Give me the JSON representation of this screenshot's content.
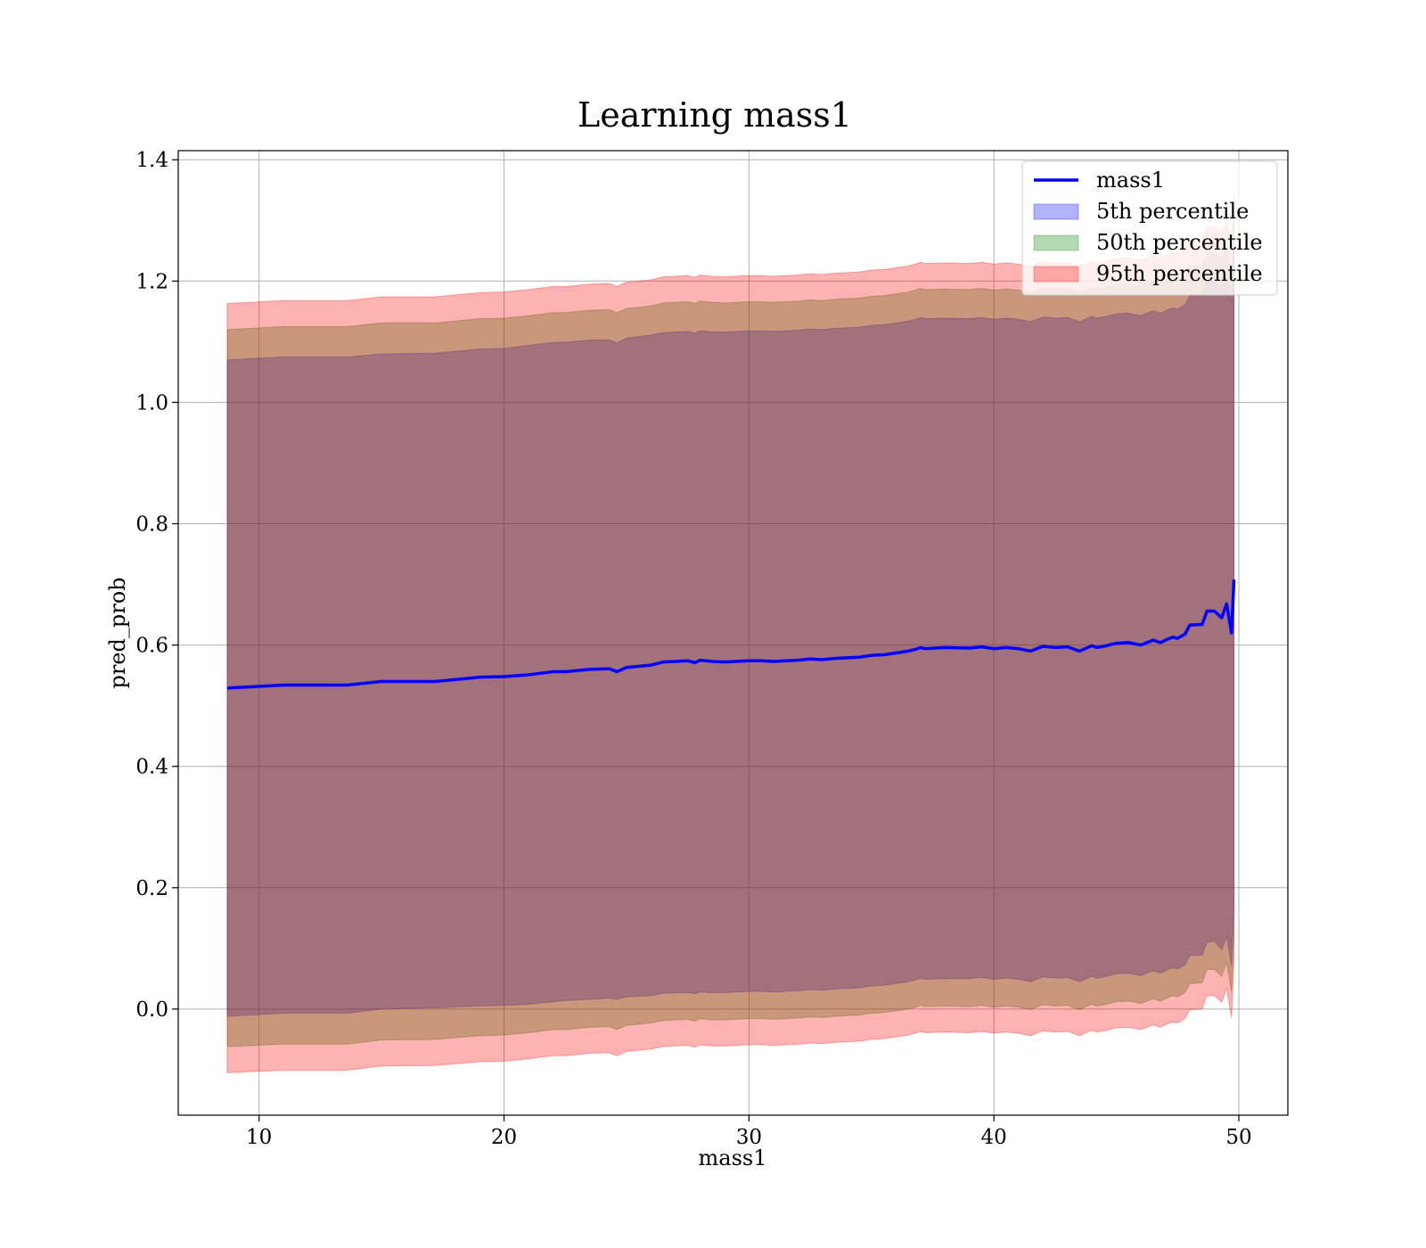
{
  "chart_data": {
    "type": "area",
    "title": "Learning mass1",
    "xlabel": "mass1",
    "ylabel": "pred_prob",
    "xlim": [
      6.7,
      52
    ],
    "ylim": [
      -0.175,
      1.415
    ],
    "xticks": [
      10,
      20,
      30,
      40,
      50
    ],
    "yticks": [
      0.0,
      0.2,
      0.4,
      0.6,
      0.8,
      1.0,
      1.2,
      1.4
    ],
    "xtick_labels": [
      "10",
      "20",
      "30",
      "40",
      "50"
    ],
    "ytick_labels": [
      "0.0",
      "0.2",
      "0.4",
      "0.6",
      "0.8",
      "1.0",
      "1.2",
      "1.4"
    ],
    "grid": true,
    "legend_position": "top-right",
    "x": [
      8.7,
      11,
      13.6,
      15,
      17.2,
      19,
      20,
      21,
      22,
      22.5,
      23.5,
      24.3,
      24.6,
      25,
      26,
      26.5,
      27.5,
      27.8,
      28,
      28.5,
      29,
      30,
      30.5,
      31,
      32,
      32.5,
      33,
      33.5,
      34,
      34.5,
      35,
      35.5,
      36,
      36.5,
      36.8,
      37,
      37.2,
      38,
      39,
      39.5,
      40,
      40.5,
      41,
      41.5,
      42,
      42.5,
      43,
      43.5,
      44,
      44.2,
      44.5,
      45,
      45.5,
      46,
      46.5,
      46.8,
      47,
      47.3,
      47.5,
      47.8,
      48,
      48.5,
      48.7,
      49,
      49.3,
      49.5,
      49.7,
      49.8
    ],
    "series": [
      {
        "name": "mass1",
        "color": "#0000ff",
        "values": [
          0.529,
          0.534,
          0.534,
          0.54,
          0.54,
          0.547,
          0.548,
          0.551,
          0.556,
          0.556,
          0.56,
          0.561,
          0.556,
          0.563,
          0.567,
          0.572,
          0.574,
          0.571,
          0.575,
          0.573,
          0.572,
          0.574,
          0.574,
          0.573,
          0.575,
          0.577,
          0.576,
          0.578,
          0.579,
          0.58,
          0.583,
          0.584,
          0.587,
          0.59,
          0.593,
          0.596,
          0.594,
          0.596,
          0.595,
          0.597,
          0.594,
          0.596,
          0.594,
          0.59,
          0.598,
          0.596,
          0.597,
          0.59,
          0.599,
          0.596,
          0.598,
          0.603,
          0.604,
          0.6,
          0.608,
          0.604,
          0.608,
          0.613,
          0.611,
          0.618,
          0.633,
          0.634,
          0.656,
          0.656,
          0.645,
          0.668,
          0.62,
          0.708
        ]
      },
      {
        "name": "5th percentile",
        "color": "#0000ff",
        "lower": [
          -0.012,
          -0.007,
          -0.007,
          0.0,
          0.002,
          0.005,
          0.006,
          0.008,
          0.012,
          0.014,
          0.016,
          0.018,
          0.016,
          0.02,
          0.022,
          0.026,
          0.027,
          0.025,
          0.028,
          0.027,
          0.027,
          0.029,
          0.029,
          0.028,
          0.03,
          0.032,
          0.031,
          0.033,
          0.034,
          0.035,
          0.038,
          0.039,
          0.042,
          0.045,
          0.048,
          0.051,
          0.049,
          0.05,
          0.05,
          0.052,
          0.049,
          0.051,
          0.049,
          0.045,
          0.053,
          0.051,
          0.052,
          0.045,
          0.054,
          0.051,
          0.053,
          0.058,
          0.059,
          0.055,
          0.063,
          0.059,
          0.063,
          0.068,
          0.066,
          0.073,
          0.088,
          0.089,
          0.11,
          0.112,
          0.098,
          0.12,
          0.072,
          0.165
        ],
        "upper": [
          1.07,
          1.075,
          1.075,
          1.08,
          1.081,
          1.088,
          1.089,
          1.094,
          1.099,
          1.099,
          1.103,
          1.103,
          1.098,
          1.106,
          1.111,
          1.115,
          1.117,
          1.114,
          1.118,
          1.116,
          1.116,
          1.118,
          1.118,
          1.117,
          1.119,
          1.121,
          1.12,
          1.122,
          1.123,
          1.124,
          1.127,
          1.128,
          1.131,
          1.134,
          1.137,
          1.14,
          1.138,
          1.139,
          1.138,
          1.14,
          1.137,
          1.139,
          1.137,
          1.133,
          1.141,
          1.139,
          1.14,
          1.133,
          1.142,
          1.139,
          1.141,
          1.146,
          1.147,
          1.143,
          1.151,
          1.147,
          1.151,
          1.156,
          1.154,
          1.161,
          1.176,
          1.177,
          1.199,
          1.199,
          1.188,
          1.211,
          1.163,
          1.251
        ]
      },
      {
        "name": "50th percentile",
        "color": "#008000",
        "lower": [
          -0.062,
          -0.058,
          -0.058,
          -0.051,
          -0.05,
          -0.044,
          -0.043,
          -0.039,
          -0.034,
          -0.034,
          -0.03,
          -0.029,
          -0.034,
          -0.027,
          -0.023,
          -0.019,
          -0.017,
          -0.02,
          -0.016,
          -0.018,
          -0.018,
          -0.016,
          -0.016,
          -0.017,
          -0.015,
          -0.013,
          -0.014,
          -0.012,
          -0.011,
          -0.01,
          -0.007,
          -0.006,
          -0.003,
          0.0,
          0.003,
          0.006,
          0.004,
          0.005,
          0.004,
          0.006,
          0.003,
          0.005,
          0.003,
          -0.001,
          0.007,
          0.005,
          0.006,
          -0.001,
          0.008,
          0.005,
          0.007,
          0.012,
          0.013,
          0.009,
          0.017,
          0.013,
          0.017,
          0.022,
          0.02,
          0.027,
          0.042,
          0.043,
          0.065,
          0.065,
          0.054,
          0.077,
          0.029,
          0.117
        ],
        "upper": [
          1.12,
          1.125,
          1.125,
          1.131,
          1.131,
          1.138,
          1.139,
          1.143,
          1.148,
          1.148,
          1.152,
          1.153,
          1.148,
          1.155,
          1.159,
          1.164,
          1.166,
          1.163,
          1.167,
          1.165,
          1.164,
          1.166,
          1.166,
          1.165,
          1.167,
          1.169,
          1.168,
          1.17,
          1.171,
          1.172,
          1.175,
          1.176,
          1.179,
          1.182,
          1.185,
          1.188,
          1.186,
          1.187,
          1.186,
          1.188,
          1.185,
          1.187,
          1.185,
          1.181,
          1.189,
          1.187,
          1.188,
          1.181,
          1.19,
          1.187,
          1.189,
          1.194,
          1.195,
          1.191,
          1.199,
          1.195,
          1.199,
          1.204,
          1.202,
          1.209,
          1.224,
          1.225,
          1.247,
          1.247,
          1.236,
          1.259,
          1.211,
          1.299
        ]
      },
      {
        "name": "95th percentile",
        "color": "#ff0000",
        "lower": [
          -0.105,
          -0.101,
          -0.101,
          -0.094,
          -0.093,
          -0.087,
          -0.086,
          -0.082,
          -0.077,
          -0.077,
          -0.073,
          -0.072,
          -0.077,
          -0.07,
          -0.066,
          -0.062,
          -0.06,
          -0.063,
          -0.059,
          -0.061,
          -0.061,
          -0.059,
          -0.059,
          -0.06,
          -0.058,
          -0.056,
          -0.057,
          -0.055,
          -0.054,
          -0.053,
          -0.05,
          -0.049,
          -0.046,
          -0.043,
          -0.04,
          -0.037,
          -0.039,
          -0.038,
          -0.039,
          -0.037,
          -0.04,
          -0.038,
          -0.04,
          -0.044,
          -0.036,
          -0.038,
          -0.037,
          -0.044,
          -0.035,
          -0.038,
          -0.036,
          -0.031,
          -0.03,
          -0.034,
          -0.026,
          -0.03,
          -0.026,
          -0.021,
          -0.023,
          -0.016,
          -0.001,
          0.0,
          0.022,
          0.022,
          0.011,
          0.034,
          -0.014,
          0.074
        ],
        "upper": [
          1.163,
          1.168,
          1.168,
          1.174,
          1.174,
          1.181,
          1.182,
          1.186,
          1.191,
          1.191,
          1.195,
          1.196,
          1.191,
          1.198,
          1.202,
          1.207,
          1.209,
          1.206,
          1.21,
          1.208,
          1.207,
          1.209,
          1.209,
          1.208,
          1.21,
          1.212,
          1.211,
          1.213,
          1.214,
          1.215,
          1.218,
          1.219,
          1.222,
          1.225,
          1.228,
          1.231,
          1.229,
          1.23,
          1.229,
          1.231,
          1.228,
          1.23,
          1.228,
          1.224,
          1.232,
          1.23,
          1.231,
          1.224,
          1.233,
          1.23,
          1.232,
          1.237,
          1.238,
          1.234,
          1.242,
          1.238,
          1.242,
          1.247,
          1.245,
          1.252,
          1.267,
          1.268,
          1.29,
          1.29,
          1.279,
          1.302,
          1.254,
          1.342
        ]
      }
    ]
  }
}
